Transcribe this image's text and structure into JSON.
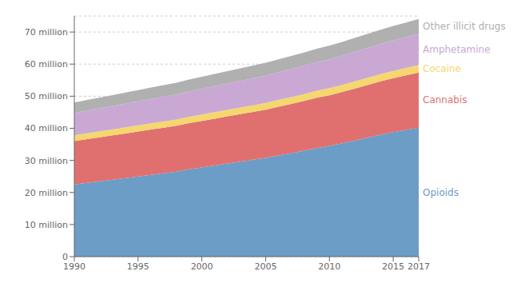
{
  "chart_data": {
    "type": "area",
    "stacked": true,
    "grid": true,
    "x": [
      1990,
      1991,
      1992,
      1993,
      1994,
      1995,
      1996,
      1997,
      1998,
      1999,
      2000,
      2001,
      2002,
      2003,
      2004,
      2005,
      2006,
      2007,
      2008,
      2009,
      2010,
      2011,
      2012,
      2013,
      2014,
      2015,
      2016,
      2017
    ],
    "series": [
      {
        "name": "Opioids",
        "color": "#6b9dc7",
        "values": [
          22.5,
          23.0,
          23.5,
          24.0,
          24.5,
          25.0,
          25.5,
          26.0,
          26.5,
          27.2,
          27.8,
          28.4,
          29.0,
          29.6,
          30.2,
          30.8,
          31.5,
          32.2,
          33.0,
          33.8,
          34.5,
          35.3,
          36.2,
          37.1,
          38.0,
          38.8,
          39.5,
          40.2
        ]
      },
      {
        "name": "Cannabis",
        "color": "#e07070",
        "values": [
          13.5,
          13.6,
          13.7,
          13.8,
          13.9,
          14.0,
          14.1,
          14.2,
          14.3,
          14.4,
          14.5,
          14.6,
          14.7,
          14.8,
          14.9,
          15.0,
          15.2,
          15.4,
          15.5,
          15.7,
          15.8,
          16.0,
          16.2,
          16.4,
          16.6,
          16.8,
          17.0,
          17.2
        ]
      },
      {
        "name": "Cocaine",
        "color": "#f5d76e",
        "values": [
          1.8,
          1.82,
          1.84,
          1.86,
          1.88,
          1.9,
          1.92,
          1.94,
          1.96,
          1.98,
          2.0,
          2.02,
          2.04,
          2.06,
          2.08,
          2.1,
          2.12,
          2.14,
          2.16,
          2.18,
          2.2,
          2.22,
          2.24,
          2.26,
          2.28,
          2.3,
          2.32,
          2.34
        ]
      },
      {
        "name": "Amphetamine",
        "color": "#c9a8d4",
        "values": [
          7.0,
          7.1,
          7.2,
          7.3,
          7.4,
          7.5,
          7.6,
          7.7,
          7.8,
          7.9,
          8.0,
          8.1,
          8.2,
          8.3,
          8.4,
          8.5,
          8.6,
          8.7,
          8.8,
          8.9,
          9.0,
          9.1,
          9.2,
          9.3,
          9.4,
          9.5,
          9.6,
          9.7
        ]
      },
      {
        "name": "Other illicit drugs",
        "color": "#b0b0b0",
        "values": [
          3.2,
          3.3,
          3.35,
          3.4,
          3.45,
          3.5,
          3.55,
          3.6,
          3.65,
          3.7,
          3.75,
          3.8,
          3.85,
          3.9,
          3.95,
          4.0,
          4.05,
          4.1,
          4.15,
          4.2,
          4.25,
          4.3,
          4.35,
          4.4,
          4.45,
          4.5,
          4.55,
          4.6
        ]
      }
    ],
    "xlim": [
      1990,
      2017
    ],
    "xticks": [
      1990,
      1995,
      2000,
      2005,
      2010,
      2015,
      2017
    ],
    "ylim": [
      0,
      75
    ],
    "yticks": [
      0,
      {
        "value": 10,
        "label": "10 million"
      },
      {
        "value": 20,
        "label": "20 million"
      },
      {
        "value": 30,
        "label": "30 million"
      },
      {
        "value": 40,
        "label": "40 million"
      },
      {
        "value": 50,
        "label": "50 million"
      },
      {
        "value": 60,
        "label": "60 million"
      },
      {
        "value": 70,
        "label": "70 million"
      }
    ]
  }
}
